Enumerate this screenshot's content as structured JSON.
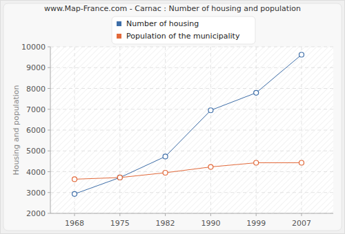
{
  "chart_data": {
    "type": "line",
    "title": "www.Map-France.com - Carnac : Number of housing and population",
    "y_label": "Housing and population",
    "categories": [
      "1968",
      "1975",
      "1982",
      "1990",
      "1999",
      "2007"
    ],
    "series": [
      {
        "name": "Number of housing",
        "color": "#3e6ea8",
        "marker": "circle",
        "values": [
          2930,
          3720,
          4730,
          6950,
          7790,
          9620
        ]
      },
      {
        "name": "Population of the municipality",
        "color": "#e2693a",
        "marker": "circle",
        "values": [
          3640,
          3720,
          3950,
          4230,
          4430,
          4430
        ]
      }
    ],
    "ylim": [
      2000,
      10000
    ],
    "yticks": [
      2000,
      3000,
      4000,
      5000,
      6000,
      7000,
      8000,
      9000,
      10000
    ],
    "grid": true,
    "legend": "top"
  }
}
